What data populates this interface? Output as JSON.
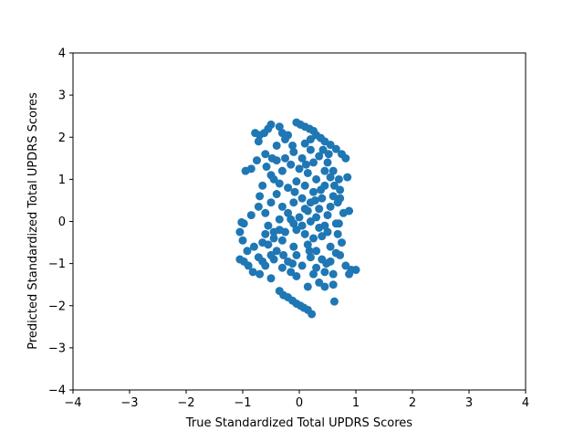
{
  "chart_data": {
    "type": "scatter",
    "title": "",
    "xlabel": "True Standardized Total UPDRS Scores",
    "ylabel": "Predicted Standardized Total UPDRS Scores",
    "xlim": [
      -4,
      4
    ],
    "ylim": [
      -4,
      4
    ],
    "xticks": [
      -4,
      -3,
      -2,
      -1,
      0,
      1,
      2,
      3,
      4
    ],
    "yticks": [
      -4,
      -3,
      -2,
      -1,
      0,
      1,
      2,
      3,
      4
    ],
    "xtick_labels": [
      "−4",
      "−3",
      "−2",
      "−1",
      "0",
      "1",
      "2",
      "3",
      "4"
    ],
    "ytick_labels": [
      "−4",
      "−3",
      "−2",
      "−1",
      "0",
      "1",
      "2",
      "3",
      "4"
    ],
    "grid": false,
    "marker_color": "#1f77b4",
    "points": [
      [
        -0.05,
        2.35
      ],
      [
        0.02,
        2.3
      ],
      [
        0.1,
        2.25
      ],
      [
        0.18,
        2.2
      ],
      [
        0.25,
        2.15
      ],
      [
        0.3,
        2.05
      ],
      [
        0.38,
        1.98
      ],
      [
        0.45,
        1.9
      ],
      [
        0.55,
        1.82
      ],
      [
        0.65,
        1.72
      ],
      [
        0.75,
        1.6
      ],
      [
        0.82,
        1.5
      ],
      [
        -0.5,
        2.3
      ],
      [
        -0.55,
        2.2
      ],
      [
        -0.62,
        2.1
      ],
      [
        -0.7,
        2.05
      ],
      [
        -0.78,
        2.1
      ],
      [
        -0.72,
        1.9
      ],
      [
        -0.35,
        2.25
      ],
      [
        -0.3,
        2.1
      ],
      [
        -0.2,
        2.05
      ],
      [
        -0.25,
        1.95
      ],
      [
        -0.4,
        1.8
      ],
      [
        -0.6,
        1.6
      ],
      [
        -0.75,
        1.45
      ],
      [
        -0.95,
        1.2
      ],
      [
        -0.85,
        1.25
      ],
      [
        -0.5,
        1.1
      ],
      [
        -0.65,
        0.85
      ],
      [
        -0.7,
        0.6
      ],
      [
        -0.72,
        0.35
      ],
      [
        -0.6,
        0.2
      ],
      [
        0.1,
        1.85
      ],
      [
        0.2,
        1.7
      ],
      [
        -0.1,
        1.65
      ],
      [
        0.05,
        1.5
      ],
      [
        0.35,
        1.55
      ],
      [
        0.5,
        1.4
      ],
      [
        0.6,
        1.2
      ],
      [
        0.7,
        1.0
      ],
      [
        0.85,
        1.05
      ],
      [
        0.72,
        0.75
      ],
      [
        0.68,
        0.45
      ],
      [
        0.78,
        0.2
      ],
      [
        0.88,
        0.25
      ],
      [
        0.65,
        -0.05
      ],
      [
        0.75,
        -0.5
      ],
      [
        0.72,
        -0.8
      ],
      [
        0.82,
        -1.05
      ],
      [
        0.92,
        -1.15
      ],
      [
        1.0,
        -1.15
      ],
      [
        0.88,
        -1.25
      ],
      [
        0.6,
        -1.5
      ],
      [
        0.62,
        -1.9
      ],
      [
        0.45,
        -1.55
      ],
      [
        0.35,
        -1.45
      ],
      [
        0.15,
        -1.55
      ],
      [
        -0.05,
        -1.3
      ],
      [
        -0.35,
        -1.65
      ],
      [
        -0.28,
        -1.75
      ],
      [
        -0.2,
        -1.8
      ],
      [
        -0.12,
        -1.88
      ],
      [
        -0.05,
        -1.95
      ],
      [
        0.02,
        -2.0
      ],
      [
        0.08,
        -2.05
      ],
      [
        0.15,
        -2.1
      ],
      [
        0.22,
        -2.2
      ],
      [
        -0.5,
        -1.35
      ],
      [
        -0.7,
        -1.25
      ],
      [
        -0.82,
        -1.2
      ],
      [
        -0.9,
        -1.05
      ],
      [
        -1.05,
        -0.9
      ],
      [
        -0.98,
        -0.95
      ],
      [
        -0.92,
        -0.7
      ],
      [
        -1.0,
        -0.45
      ],
      [
        -1.05,
        -0.25
      ],
      [
        -0.98,
        -0.05
      ],
      [
        -1.02,
        -0.02
      ],
      [
        -0.85,
        0.15
      ],
      [
        -0.55,
        -0.1
      ],
      [
        -0.65,
        -0.5
      ],
      [
        -0.8,
        -0.6
      ],
      [
        -0.72,
        -0.85
      ],
      [
        -0.6,
        -1.05
      ],
      [
        -0.45,
        -0.9
      ],
      [
        -0.3,
        -1.1
      ],
      [
        -0.15,
        -1.2
      ],
      [
        0.05,
        -1.05
      ],
      [
        0.25,
        -1.25
      ],
      [
        0.45,
        -1.2
      ],
      [
        0.55,
        -0.95
      ],
      [
        0.3,
        -0.7
      ],
      [
        0.15,
        -0.55
      ],
      [
        -0.1,
        -0.6
      ],
      [
        -0.3,
        -0.45
      ],
      [
        -0.45,
        -0.25
      ],
      [
        -0.35,
        0.05
      ],
      [
        -0.2,
        0.2
      ],
      [
        0.0,
        0.1
      ],
      [
        0.15,
        0.25
      ],
      [
        0.3,
        0.1
      ],
      [
        0.45,
        -0.1
      ],
      [
        0.55,
        0.35
      ],
      [
        0.4,
        0.55
      ],
      [
        0.25,
        0.7
      ],
      [
        0.1,
        0.85
      ],
      [
        -0.05,
        0.95
      ],
      [
        -0.2,
        0.8
      ],
      [
        -0.4,
        0.65
      ],
      [
        -0.5,
        0.45
      ],
      [
        -0.3,
        0.35
      ],
      [
        -0.1,
        0.45
      ],
      [
        0.05,
        0.55
      ],
      [
        0.2,
        0.45
      ],
      [
        0.35,
        0.3
      ],
      [
        0.5,
        0.15
      ],
      [
        0.6,
        0.6
      ],
      [
        0.45,
        0.85
      ],
      [
        0.3,
        1.0
      ],
      [
        0.15,
        1.15
      ],
      [
        0.0,
        1.25
      ],
      [
        -0.15,
        1.35
      ],
      [
        -0.3,
        1.2
      ],
      [
        -0.45,
        1.0
      ],
      [
        -0.25,
        1.5
      ],
      [
        -0.4,
        1.45
      ],
      [
        0.45,
        1.2
      ],
      [
        0.55,
        1.05
      ],
      [
        0.25,
        1.4
      ],
      [
        -0.05,
        -0.2
      ],
      [
        0.1,
        -0.3
      ],
      [
        0.25,
        -0.4
      ],
      [
        0.4,
        -0.35
      ],
      [
        0.55,
        -0.6
      ],
      [
        0.65,
        -0.75
      ],
      [
        0.4,
        -0.9
      ],
      [
        0.2,
        -0.85
      ],
      [
        -0.05,
        -0.8
      ],
      [
        -0.2,
        -0.95
      ],
      [
        -0.4,
        -0.7
      ],
      [
        -0.55,
        -0.55
      ],
      [
        -0.6,
        -0.3
      ],
      [
        -0.45,
        -0.4
      ],
      [
        -0.25,
        -0.25
      ],
      [
        -0.1,
        -0.05
      ],
      [
        0.05,
        -0.1
      ],
      [
        0.2,
        0.0
      ],
      [
        0.35,
        -0.15
      ],
      [
        0.5,
        -0.25
      ],
      [
        0.68,
        -0.3
      ],
      [
        0.7,
        -0.05
      ],
      [
        0.62,
        0.85
      ],
      [
        0.72,
        0.55
      ],
      [
        -0.15,
        0.05
      ],
      [
        -0.35,
        -0.2
      ],
      [
        0.1,
        0.3
      ],
      [
        0.28,
        0.5
      ],
      [
        -0.08,
        0.7
      ],
      [
        0.38,
        0.75
      ],
      [
        0.18,
        -0.7
      ],
      [
        -0.28,
        -0.8
      ],
      [
        0.48,
        -1.0
      ],
      [
        0.3,
        -1.1
      ],
      [
        -0.12,
        -1.0
      ],
      [
        -0.5,
        -0.8
      ],
      [
        -0.65,
        -0.95
      ],
      [
        0.6,
        -1.25
      ],
      [
        0.42,
        1.7
      ],
      [
        0.2,
        1.95
      ],
      [
        -0.12,
        1.8
      ],
      [
        -0.48,
        1.5
      ],
      [
        -0.58,
        1.3
      ],
      [
        0.52,
        1.6
      ],
      [
        0.12,
        1.35
      ],
      [
        -0.35,
        0.9
      ]
    ]
  }
}
